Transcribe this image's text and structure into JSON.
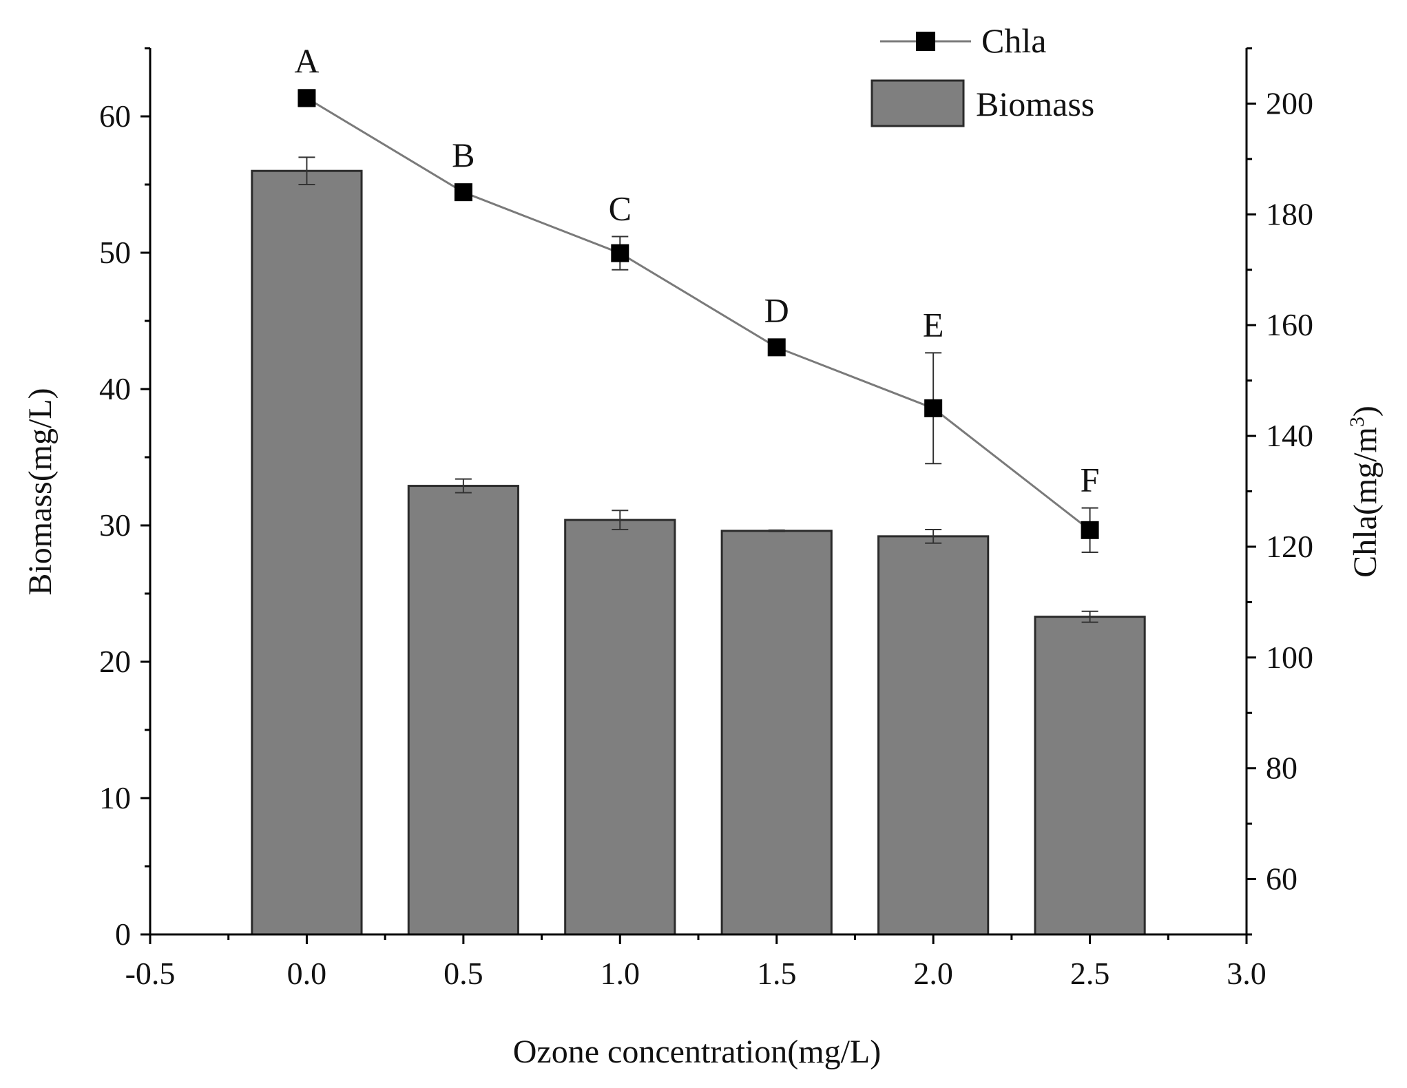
{
  "chart_data": {
    "type": "bar+line",
    "colors": {
      "bar_fill": "#7f7f7f",
      "bar_stroke": "#2b2b2b",
      "line": "#7a7a7a",
      "marker": "#000000",
      "axis": "#000000",
      "error_bar": "#333333"
    },
    "x_axis": {
      "label": "Ozone concentration(mg/L)",
      "range": [
        -0.5,
        3.0
      ],
      "ticks": [
        -0.5,
        0.0,
        0.5,
        1.0,
        1.5,
        2.0,
        2.5,
        3.0
      ],
      "tick_labels": [
        "-0.5",
        "0.0",
        "0.5",
        "1.0",
        "1.5",
        "2.0",
        "2.5",
        "3.0"
      ]
    },
    "y_axis_left": {
      "label": "Biomass(mg/L)",
      "range": [
        0,
        65
      ],
      "ticks": [
        0,
        10,
        20,
        30,
        40,
        50,
        60
      ],
      "tick_labels": [
        "0",
        "10",
        "20",
        "30",
        "40",
        "50",
        "60"
      ]
    },
    "y_axis_right": {
      "label": "Chla(mg/m",
      "label_superscript": "3",
      "label_suffix": ")",
      "range": [
        50,
        210
      ],
      "ticks": [
        60,
        80,
        100,
        120,
        140,
        160,
        180,
        200
      ],
      "tick_labels": [
        "60",
        "80",
        "100",
        "120",
        "140",
        "160",
        "180",
        "200"
      ]
    },
    "series": [
      {
        "name": "Biomass",
        "type": "bar",
        "axis": "left",
        "x": [
          0.0,
          0.5,
          1.0,
          1.5,
          2.0,
          2.5
        ],
        "values": [
          56.0,
          32.9,
          30.4,
          29.6,
          29.2,
          23.3
        ],
        "errors": [
          1.0,
          0.5,
          0.7,
          0.05,
          0.5,
          0.4
        ]
      },
      {
        "name": "Chla",
        "type": "line",
        "axis": "right",
        "marker": "square",
        "x": [
          0.0,
          0.5,
          1.0,
          1.5,
          2.0,
          2.5
        ],
        "values": [
          201,
          184,
          173,
          156,
          145,
          123
        ],
        "errors": [
          1.5,
          1.0,
          3.0,
          1.0,
          10.0,
          4.0
        ],
        "point_labels": [
          "A",
          "B",
          "C",
          "D",
          "E",
          "F"
        ]
      }
    ],
    "legend": {
      "position": "top-right",
      "entries": [
        "Chla",
        "Biomass"
      ]
    }
  }
}
